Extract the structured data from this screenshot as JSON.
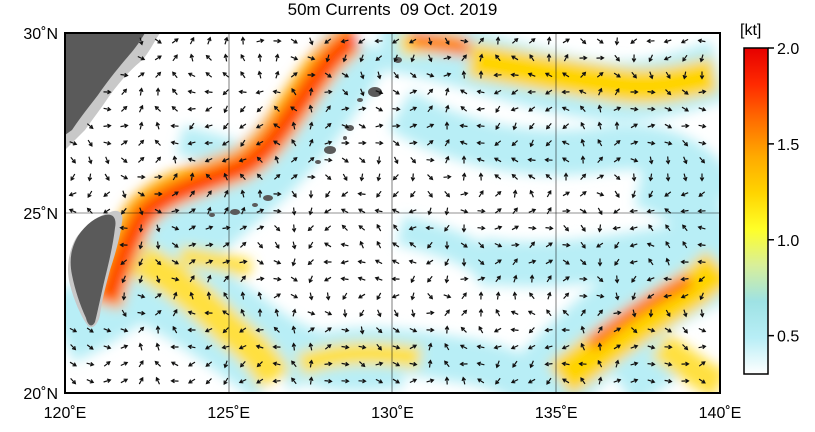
{
  "title": "50m Currents  09 Oct. 2019",
  "map": {
    "lon_range": [
      120,
      140
    ],
    "lat_range": [
      20,
      30
    ],
    "lon_ticks": [
      {
        "value": 120,
        "label": "120˚E"
      },
      {
        "value": 125,
        "label": "125˚E"
      },
      {
        "value": 130,
        "label": "130˚E"
      },
      {
        "value": 135,
        "label": "135˚E"
      },
      {
        "value": 140,
        "label": "140˚E"
      }
    ],
    "lat_ticks": [
      {
        "value": 30,
        "label": "30˚N"
      },
      {
        "value": 25,
        "label": "25˚N"
      },
      {
        "value": 20,
        "label": "20˚N"
      }
    ],
    "grid": true,
    "land_color": "#5a5a5a",
    "shelf_color": "#c8c8c8"
  },
  "colorbar": {
    "unit": "[kt]",
    "min": 0.3,
    "max": 2.0,
    "ticks": [
      {
        "value": 2.0,
        "label": "2.0"
      },
      {
        "value": 1.5,
        "label": "1.5"
      },
      {
        "value": 1.0,
        "label": "1.0"
      },
      {
        "value": 0.5,
        "label": "0.5"
      }
    ],
    "colors": [
      "#ffffff",
      "#b8eef6",
      "#9ee2e4",
      "#d8ef9a",
      "#ffff28",
      "#ffd400",
      "#ffaa00",
      "#ff6e00",
      "#ff2a00",
      "#e60000"
    ]
  }
}
